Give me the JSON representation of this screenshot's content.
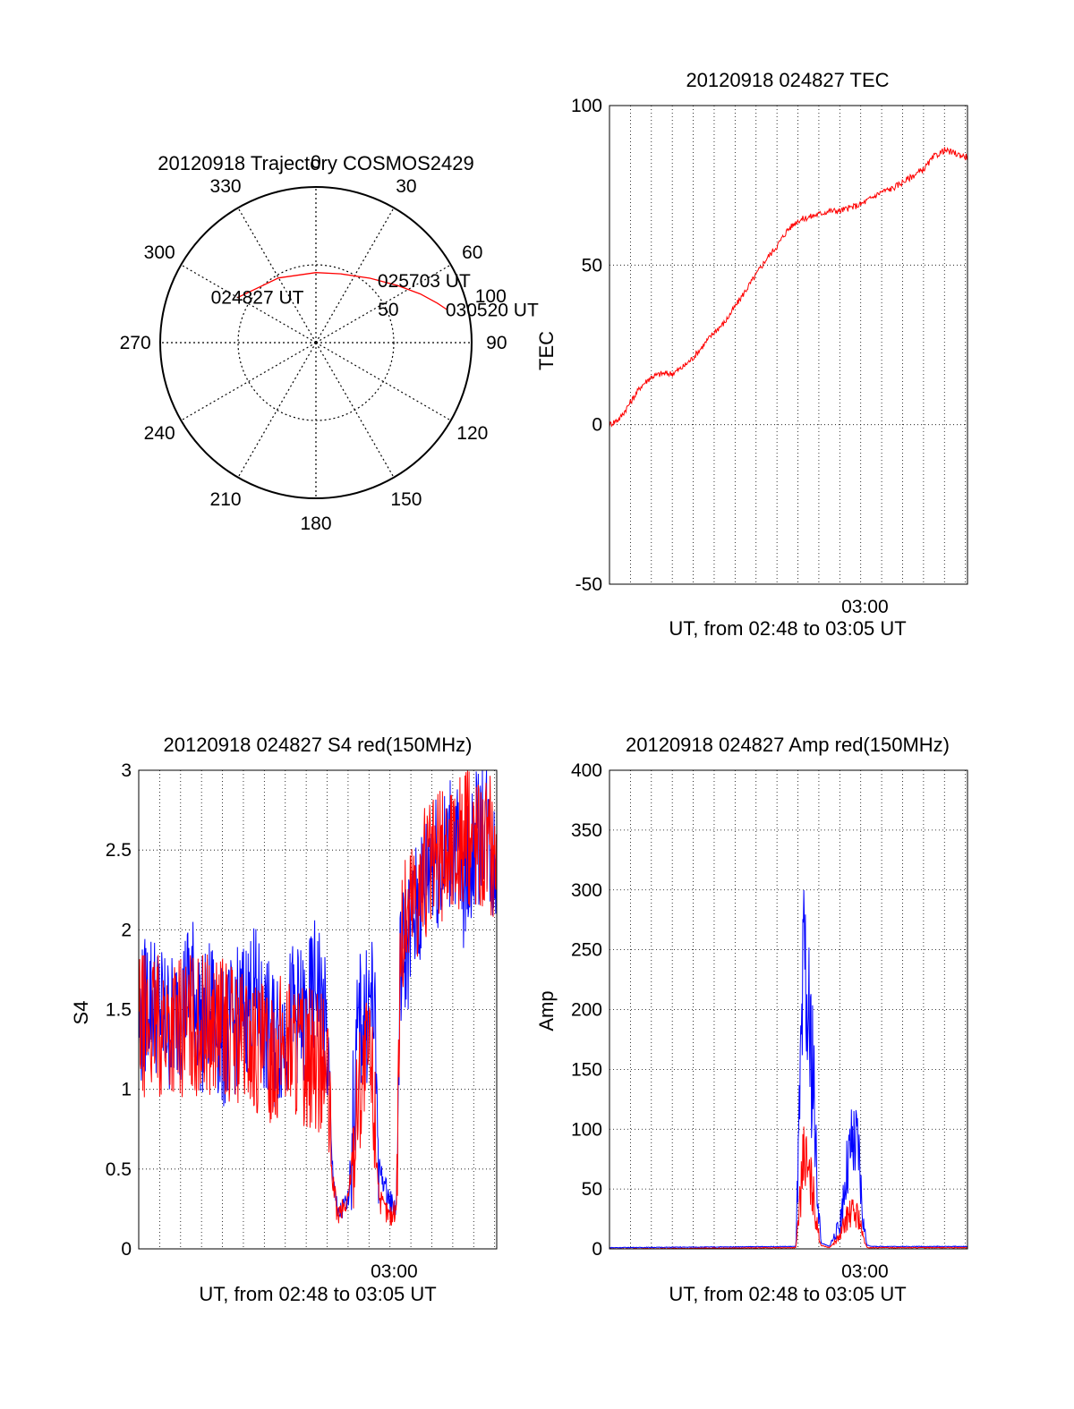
{
  "colors": {
    "red": "#ff0000",
    "blue": "#0000ff",
    "axis": "#000000",
    "grid": "#000000"
  },
  "chart_data": [
    {
      "id": "trajectory",
      "type": "polar",
      "title": "20120918 Trajectory COSMOS2429",
      "azimuth_labels": [
        "0",
        "30",
        "60",
        "90",
        "120",
        "150",
        "180",
        "210",
        "240",
        "270",
        "300",
        "330"
      ],
      "radial_labels": [
        "50",
        "100"
      ],
      "grid": true,
      "trajectory": [
        {
          "az": 300,
          "r": 58
        },
        {
          "az": 330,
          "r": 48
        },
        {
          "az": 0,
          "r": 45
        },
        {
          "az": 20,
          "r": 47
        },
        {
          "az": 40,
          "r": 54
        },
        {
          "az": 55,
          "r": 64
        },
        {
          "az": 65,
          "r": 74
        },
        {
          "az": 72,
          "r": 82
        },
        {
          "az": 76,
          "r": 87
        }
      ],
      "annotations": [
        {
          "label": "024827 UT",
          "az": 300,
          "r": 58
        },
        {
          "label": "025703 UT",
          "az": 45,
          "r": 56
        },
        {
          "label": "030520 UT",
          "az": 76,
          "r": 87
        }
      ]
    },
    {
      "id": "tec",
      "type": "line",
      "title": "20120918 024827 TEC",
      "ylabel": "TEC",
      "xlabel": "UT, from 02:48 to 03:05 UT",
      "x_tick_labels": [
        {
          "t": 12.2,
          "label": "03:00"
        }
      ],
      "xlim": [
        0,
        17.1
      ],
      "ylim": [
        -50,
        100
      ],
      "y_tick_labels": [
        "-50",
        "0",
        "50",
        "100"
      ],
      "grid": true,
      "series": [
        {
          "color": "red",
          "x": [
            0,
            0.5,
            1,
            1.5,
            2,
            2.5,
            3,
            3.5,
            4,
            4.5,
            5,
            5.5,
            6,
            6.5,
            7,
            7.5,
            8,
            8.5,
            9,
            9.5,
            10,
            10.5,
            11,
            11.5,
            12,
            12.5,
            13,
            13.5,
            14,
            14.5,
            15,
            15.5,
            16,
            16.5,
            17
          ],
          "y": [
            0,
            2,
            7,
            12,
            15,
            16,
            16,
            18,
            21,
            25,
            29,
            32,
            37,
            42,
            47,
            52,
            56,
            61,
            64,
            65,
            66,
            67,
            67,
            68,
            69,
            71,
            73,
            74,
            76,
            78,
            80,
            84,
            86,
            85,
            84
          ]
        }
      ]
    },
    {
      "id": "s4",
      "type": "line",
      "title": "20120918 024827 S4 red(150MHz)",
      "ylabel": "S4",
      "xlabel": "UT, from 02:48 to 03:05 UT",
      "x_tick_labels": [
        {
          "t": 12.2,
          "label": "03:00"
        }
      ],
      "xlim": [
        0,
        17.1
      ],
      "ylim": [
        0,
        3
      ],
      "y_tick_labels": [
        "0",
        "0.5",
        "1",
        "1.5",
        "2",
        "2.5",
        "3"
      ],
      "grid": true,
      "series": [
        {
          "color": "blue",
          "x": [
            0,
            0.5,
            1,
            1.5,
            2,
            2.5,
            3,
            3.5,
            4,
            4.5,
            5,
            5.5,
            6,
            6.5,
            7,
            7.5,
            8,
            8.5,
            9,
            9.2,
            9.5,
            10,
            10.5,
            11,
            11.2,
            11.5,
            12,
            12.3,
            12.5,
            13,
            13.5,
            14,
            14.5,
            15,
            15.5,
            16,
            16.5,
            17
          ],
          "y": [
            1.4,
            1.6,
            1.5,
            1.4,
            1.5,
            1.7,
            1.4,
            1.5,
            1.3,
            1.4,
            1.5,
            1.6,
            1.4,
            1.3,
            1.4,
            1.5,
            1.4,
            1.7,
            1.3,
            0.6,
            0.2,
            0.3,
            1.4,
            1.5,
            1.6,
            0.5,
            0.3,
            0.25,
            1.8,
            2.0,
            2.2,
            2.5,
            2.4,
            2.6,
            2.3,
            2.5,
            2.7,
            2.4
          ]
        },
        {
          "color": "red",
          "x": [
            0,
            4,
            5,
            6,
            7,
            8,
            8.5,
            9,
            9.2,
            9.5,
            10,
            10.5,
            11,
            11.2,
            11.5,
            12,
            12.3,
            12.5,
            13,
            14,
            15,
            16,
            17
          ],
          "y": [
            1.4,
            1.4,
            1.3,
            1.2,
            1.3,
            1.2,
            1.2,
            1.1,
            0.5,
            0.2,
            0.3,
            1.0,
            1.2,
            1.0,
            0.3,
            0.2,
            0.25,
            1.9,
            2.2,
            2.4,
            2.5,
            2.6,
            2.5
          ]
        }
      ]
    },
    {
      "id": "amp",
      "type": "line",
      "title": "20120918 024827 Amp red(150MHz)",
      "ylabel": "Amp",
      "xlabel": "UT, from 02:48 to 03:05 UT",
      "x_tick_labels": [
        {
          "t": 12.2,
          "label": "03:00"
        }
      ],
      "xlim": [
        0,
        17.1
      ],
      "ylim": [
        0,
        400
      ],
      "y_tick_labels": [
        "0",
        "50",
        "100",
        "150",
        "200",
        "250",
        "300",
        "350",
        "400"
      ],
      "grid": true,
      "series": [
        {
          "color": "blue",
          "x": [
            0,
            8.9,
            9.1,
            9.3,
            9.5,
            9.7,
            9.9,
            10.1,
            10.5,
            11.0,
            11.3,
            11.6,
            11.9,
            12.1,
            12.3,
            12.6,
            17
          ],
          "y": [
            1,
            2,
            120,
            230,
            180,
            160,
            60,
            5,
            2,
            20,
            60,
            85,
            80,
            25,
            3,
            2,
            2
          ]
        },
        {
          "color": "red",
          "x": [
            0,
            8.9,
            9.1,
            9.3,
            9.5,
            9.7,
            9.9,
            10.1,
            10.5,
            11.0,
            11.3,
            11.6,
            11.9,
            12.1,
            12.3,
            12.6,
            17
          ],
          "y": [
            0,
            1,
            40,
            80,
            60,
            50,
            20,
            3,
            1,
            10,
            25,
            30,
            28,
            10,
            1,
            1,
            1
          ]
        }
      ]
    }
  ]
}
